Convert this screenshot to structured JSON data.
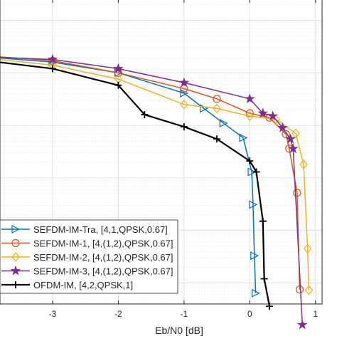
{
  "chart_data": {
    "type": "line",
    "xlabel": "Eb/N0 [dB]",
    "ylabel": "",
    "title": "",
    "xlim": [
      -3.8,
      1.1
    ],
    "ylim_log10": [
      -5.4,
      0.4
    ],
    "yscale": "log",
    "grid": true,
    "legend_position": "bottom-left",
    "x_ticks": [
      {
        "value": -3,
        "label": "-3"
      },
      {
        "value": -2,
        "label": "-2"
      },
      {
        "value": -1,
        "label": "-1"
      },
      {
        "value": 0,
        "label": "0"
      },
      {
        "value": 1,
        "label": "1"
      }
    ],
    "series": [
      {
        "name": "SEFDM-IM-Tra, [4,1,QPSK,0.67]",
        "color": "#0072bd",
        "marker": "triangle-right",
        "points": [
          [
            -4,
            0.2
          ],
          [
            -3,
            0.16
          ],
          [
            -2,
            0.1
          ],
          [
            -1,
            0.041
          ],
          [
            -0.7,
            0.021
          ],
          [
            -0.4,
            0.011
          ],
          [
            -0.1,
            0.0058
          ],
          [
            0.03,
            0.0013
          ],
          [
            0.05,
            0.00031
          ],
          [
            0.07,
            3.3e-05
          ],
          [
            0.09,
            6.4e-06
          ]
        ]
      },
      {
        "name": "SEFDM-IM-1, [4,(1,2),QPSK,0.67]",
        "color": "#d95319",
        "marker": "circle",
        "points": [
          [
            -4,
            0.21
          ],
          [
            -3,
            0.17
          ],
          [
            -2,
            0.1
          ],
          [
            -1,
            0.05
          ],
          [
            -0.5,
            0.032
          ],
          [
            0,
            0.017
          ],
          [
            0.3,
            0.014
          ],
          [
            0.55,
            0.0068
          ],
          [
            0.6,
            0.0036
          ],
          [
            0.72,
            0.00052
          ],
          [
            0.76,
            7.5e-06
          ]
        ]
      },
      {
        "name": "SEFDM-IM-2, [4,(1,2),QPSK,0.67]",
        "color": "#edb120",
        "marker": "diamond",
        "points": [
          [
            -4,
            0.19
          ],
          [
            -3,
            0.14
          ],
          [
            -2,
            0.076
          ],
          [
            -1,
            0.025
          ],
          [
            -0.5,
            0.021
          ],
          [
            0,
            0.015
          ],
          [
            0.4,
            0.013
          ],
          [
            0.7,
            0.007
          ],
          [
            0.82,
            0.0018
          ],
          [
            0.88,
            4.5e-05
          ],
          [
            0.9,
            7.3e-06
          ]
        ]
      },
      {
        "name": "SEFDM-IM-3, [4,(1,2),QPSK,0.67]",
        "color": "#7e2f8e",
        "marker": "star",
        "points": [
          [
            -4,
            0.2
          ],
          [
            -3,
            0.18
          ],
          [
            -2,
            0.12
          ],
          [
            -1,
            0.065
          ],
          [
            0,
            0.032
          ],
          [
            0.2,
            0.017
          ],
          [
            0.35,
            0.015
          ],
          [
            0.5,
            0.009
          ],
          [
            0.62,
            0.0055
          ],
          [
            0.66,
            0.0036
          ],
          [
            0.8,
            1.6e-06
          ]
        ]
      },
      {
        "name": "OFDM-IM, [4,2,QPSK,1]",
        "color": "#000000",
        "marker": "plus",
        "points": [
          [
            -4,
            0.17
          ],
          [
            -3,
            0.12
          ],
          [
            -2,
            0.058
          ],
          [
            -1.6,
            0.016
          ],
          [
            -1,
            0.0094
          ],
          [
            -0.5,
            0.0055
          ],
          [
            0,
            0.0021
          ],
          [
            0.1,
            0.0013
          ],
          [
            0.2,
            0.00015
          ],
          [
            0.22,
            1.2e-05
          ],
          [
            0.3,
            3.6e-06
          ]
        ]
      }
    ]
  }
}
